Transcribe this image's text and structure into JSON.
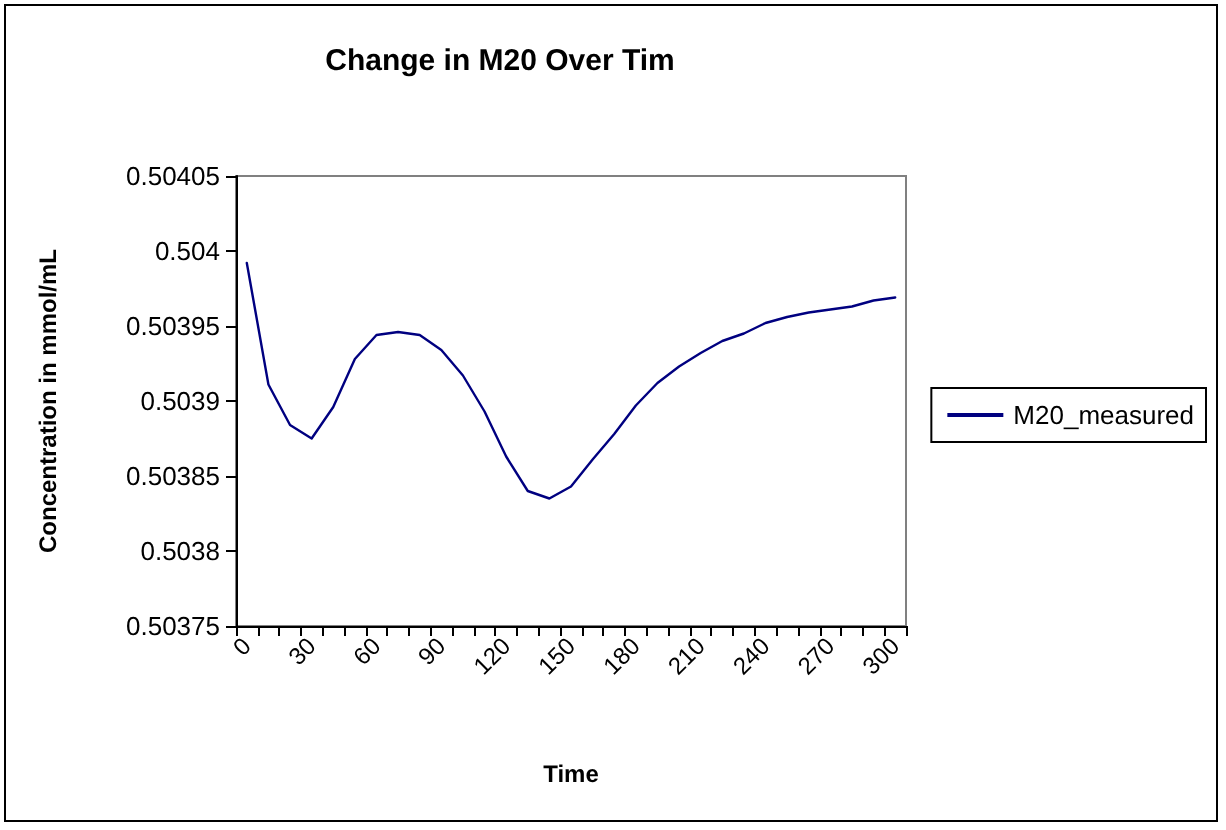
{
  "chart_data": {
    "type": "line",
    "title": "Change in M20 Over Tim",
    "xlabel": "Time",
    "ylabel": "Concentration in mmol/mL",
    "categories": [
      "0",
      null,
      null,
      "30",
      null,
      null,
      "60",
      null,
      null,
      "90",
      null,
      null,
      "120",
      null,
      null,
      "150",
      null,
      null,
      "180",
      null,
      null,
      "210",
      null,
      null,
      "240",
      null,
      null,
      "270",
      null,
      null,
      "300"
    ],
    "series": [
      {
        "name": "M20_measured",
        "color": "#000080",
        "values": [
          0.503992,
          0.503911,
          0.503884,
          0.503875,
          0.503896,
          0.503928,
          0.503944,
          0.503946,
          0.503944,
          0.503934,
          0.503917,
          0.503893,
          0.503863,
          0.50384,
          0.503835,
          0.503843,
          0.503861,
          0.503878,
          0.503897,
          0.503912,
          0.503923,
          0.503932,
          0.50394,
          0.503945,
          0.503952,
          0.503956,
          0.503959,
          0.503961,
          0.503963,
          0.503967,
          0.503969
        ]
      }
    ],
    "ylim": [
      0.50375,
      0.50405
    ],
    "yticks": [
      0.50375,
      0.5038,
      0.50385,
      0.5039,
      0.50395,
      0.504,
      0.50405
    ],
    "grid": false,
    "legend": "right",
    "marker": "none",
    "line_style": "solid"
  }
}
